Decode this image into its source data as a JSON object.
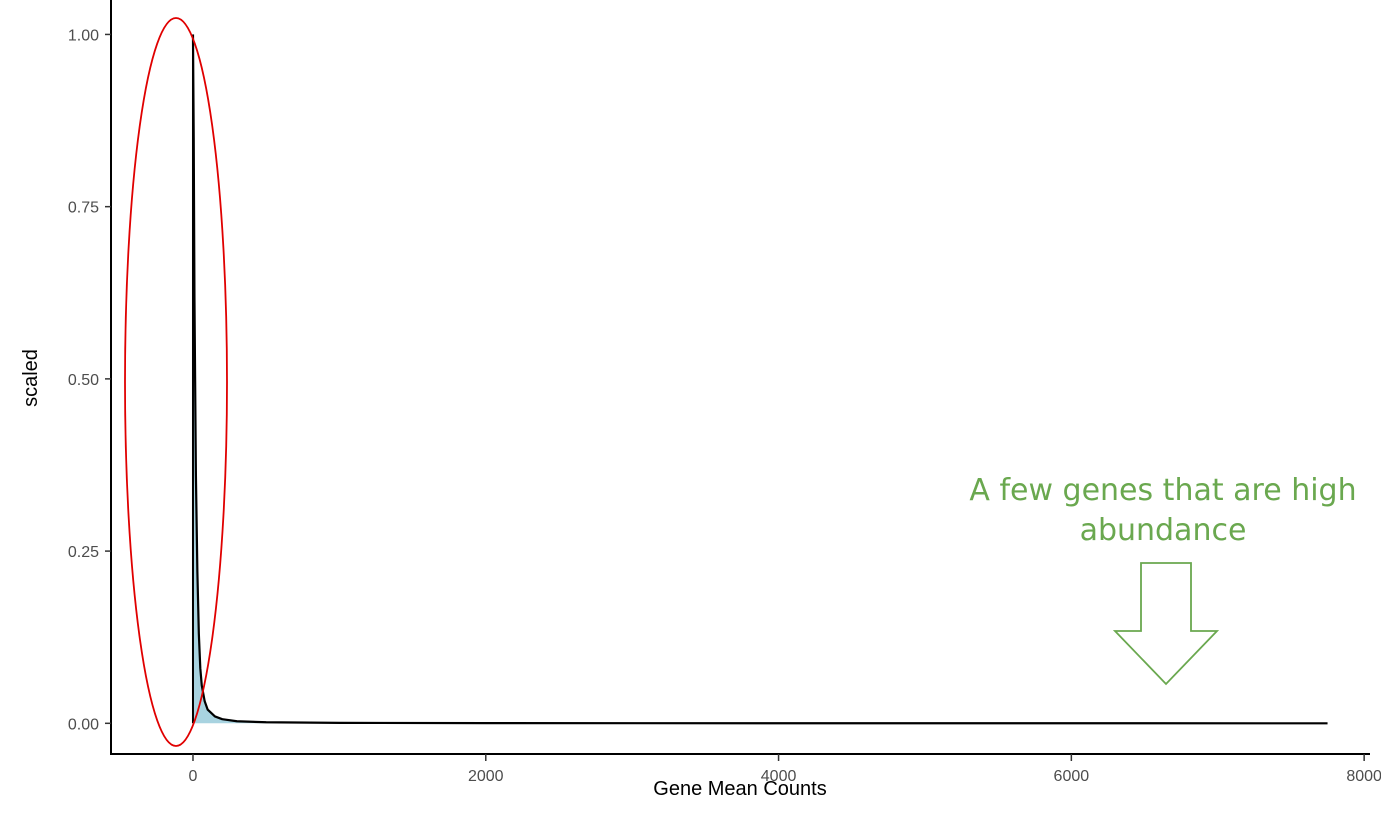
{
  "chart_data": {
    "type": "area",
    "xlabel": "Gene Mean Counts",
    "ylabel": "scaled",
    "xlim": [
      -560,
      8040
    ],
    "ylim": [
      -0.046,
      1.05
    ],
    "x_ticks": [
      0,
      2000,
      4000,
      6000,
      8000
    ],
    "y_ticks": [
      0.0,
      0.25,
      0.5,
      0.75,
      1.0
    ],
    "x_tick_labels": [
      "0",
      "2000",
      "4000",
      "6000",
      "8000"
    ],
    "y_tick_labels": [
      "0.00",
      "0.25",
      "0.50",
      "0.75",
      "1.00"
    ],
    "grid": false,
    "series": [
      {
        "x": [
          0,
          5,
          10,
          20,
          30,
          40,
          50,
          60,
          80,
          100,
          150,
          200,
          300,
          500,
          1000,
          2000,
          4000,
          6000,
          7750
        ],
        "y": [
          1.0,
          0.85,
          0.62,
          0.36,
          0.22,
          0.13,
          0.08,
          0.055,
          0.032,
          0.02,
          0.01,
          0.006,
          0.003,
          0.0015,
          0.0006,
          0.0003,
          0.0001,
          0.0001,
          0.0
        ]
      }
    ],
    "annotations": {
      "high_abundance_text": [
        "A few genes that are high",
        "abundance"
      ]
    },
    "colors": {
      "fill": "#a8d3e0",
      "line": "#000000",
      "highlight_ellipse": "#e00000",
      "annotation": "#6aa84f"
    }
  }
}
